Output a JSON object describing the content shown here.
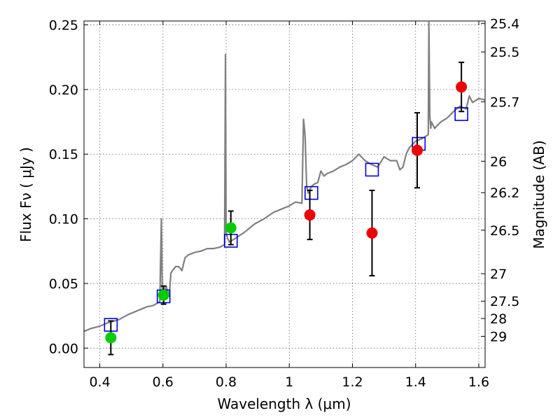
{
  "chart_data": {
    "type": "scatter",
    "xlabel": "Wavelength  λ (μm)",
    "ylabel": "Flux  Fν  ( μJy )",
    "ylabel_right": "Magnitude (AB)",
    "xlim": [
      0.35,
      1.62
    ],
    "ylim": [
      -0.015,
      0.253
    ],
    "grid": true,
    "x_ticks": [
      {
        "v": 0.4,
        "label": "0.4"
      },
      {
        "v": 0.6,
        "label": "0.6"
      },
      {
        "v": 0.8,
        "label": "0.8"
      },
      {
        "v": 1.0,
        "label": "1"
      },
      {
        "v": 1.2,
        "label": "1.2"
      },
      {
        "v": 1.4,
        "label": "1.4"
      },
      {
        "v": 1.6,
        "label": "1.6"
      }
    ],
    "y_ticks": [
      {
        "v": 0.0,
        "label": "0.00"
      },
      {
        "v": 0.05,
        "label": "0.05"
      },
      {
        "v": 0.1,
        "label": "0.10"
      },
      {
        "v": 0.15,
        "label": "0.15"
      },
      {
        "v": 0.2,
        "label": "0.20"
      },
      {
        "v": 0.25,
        "label": "0.25"
      }
    ],
    "mag_ticks": [
      {
        "mag": 25.4,
        "label": "25.4"
      },
      {
        "mag": 25.5,
        "label": "25.5"
      },
      {
        "mag": 25.7,
        "label": "25.7"
      },
      {
        "mag": 26,
        "label": "26"
      },
      {
        "mag": 26.2,
        "label": "26.2"
      },
      {
        "mag": 26.5,
        "label": "26.5"
      },
      {
        "mag": 27,
        "label": "27"
      },
      {
        "mag": 27.5,
        "label": "27.5"
      },
      {
        "mag": 28,
        "label": "28"
      },
      {
        "mag": 29,
        "label": "29"
      }
    ],
    "series": [
      {
        "kind": "spectrum",
        "color": "#808080",
        "x": [
          0.35,
          0.37,
          0.4,
          0.43,
          0.46,
          0.49,
          0.52,
          0.55,
          0.57,
          0.59,
          0.595,
          0.598,
          0.601,
          0.61,
          0.62,
          0.625,
          0.63,
          0.64,
          0.65,
          0.66,
          0.67,
          0.68,
          0.7,
          0.72,
          0.74,
          0.76,
          0.78,
          0.795,
          0.798,
          0.8,
          0.803,
          0.81,
          0.83,
          0.86,
          0.89,
          0.92,
          0.95,
          0.98,
          1.0,
          1.02,
          1.04,
          1.045,
          1.05,
          1.055,
          1.06,
          1.07,
          1.08,
          1.09,
          1.1,
          1.11,
          1.12,
          1.13,
          1.14,
          1.16,
          1.18,
          1.2,
          1.22,
          1.24,
          1.26,
          1.28,
          1.3,
          1.32,
          1.34,
          1.35,
          1.36,
          1.37,
          1.38,
          1.4,
          1.42,
          1.44,
          1.442,
          1.445,
          1.448,
          1.45,
          1.46,
          1.48,
          1.5,
          1.52,
          1.54,
          1.56,
          1.57,
          1.58,
          1.6,
          1.62
        ],
        "y": [
          0.013,
          0.015,
          0.017,
          0.02,
          0.022,
          0.026,
          0.029,
          0.032,
          0.033,
          0.036,
          0.1,
          0.04,
          0.037,
          0.048,
          0.04,
          0.058,
          0.06,
          0.063,
          0.063,
          0.06,
          0.07,
          0.072,
          0.074,
          0.075,
          0.077,
          0.077,
          0.078,
          0.08,
          0.227,
          0.09,
          0.086,
          0.082,
          0.085,
          0.09,
          0.096,
          0.1,
          0.105,
          0.108,
          0.11,
          0.113,
          0.112,
          0.177,
          0.165,
          0.125,
          0.12,
          0.125,
          0.127,
          0.128,
          0.137,
          0.133,
          0.135,
          0.136,
          0.137,
          0.14,
          0.142,
          0.145,
          0.15,
          0.145,
          0.142,
          0.14,
          0.148,
          0.145,
          0.145,
          0.138,
          0.14,
          0.15,
          0.155,
          0.16,
          0.162,
          0.165,
          0.252,
          0.18,
          0.17,
          0.175,
          0.17,
          0.175,
          0.178,
          0.183,
          0.187,
          0.185,
          0.195,
          0.19,
          0.193,
          0.192
        ]
      },
      {
        "kind": "model_points",
        "marker": "open-square",
        "color": "#0000dd",
        "x": [
          0.435,
          0.602,
          0.815,
          1.07,
          1.262,
          1.41,
          1.545
        ],
        "y": [
          0.018,
          0.04,
          0.083,
          0.12,
          0.138,
          0.158,
          0.181
        ]
      },
      {
        "kind": "observed",
        "marker": "filled-circle",
        "color": "#00cc00",
        "x": [
          0.435,
          0.602,
          0.815
        ],
        "y": [
          0.008,
          0.041,
          0.093
        ],
        "err": [
          0.013,
          0.007,
          0.013
        ]
      },
      {
        "kind": "observed",
        "marker": "filled-circle",
        "color": "#ee0000",
        "x": [
          1.065,
          1.262,
          1.405,
          1.545
        ],
        "y": [
          0.103,
          0.089,
          0.153,
          0.202
        ],
        "err": [
          0.019,
          0.033,
          0.029,
          0.019
        ]
      }
    ]
  }
}
